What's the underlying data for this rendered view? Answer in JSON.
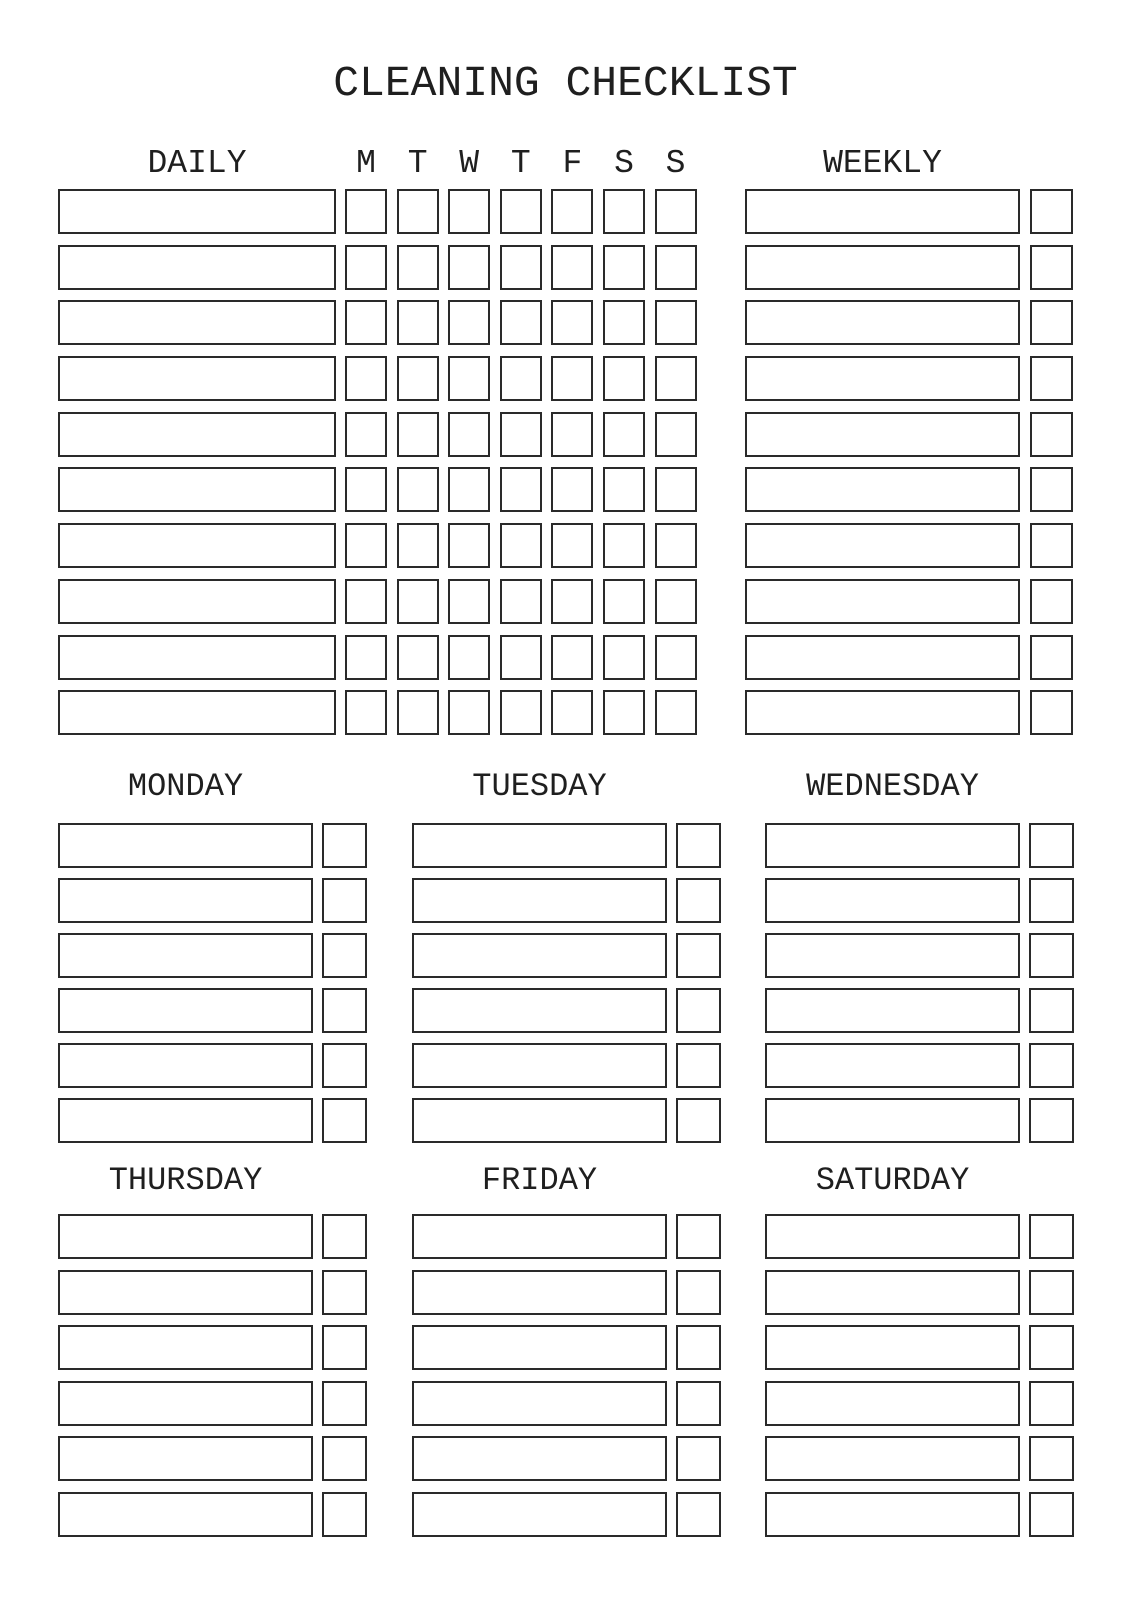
{
  "title": "CLEANING CHECKLIST",
  "colors": {
    "ink": "#1f1f1f",
    "box_border": "#2a2a2a",
    "background": "#ffffff"
  },
  "top_band": {
    "daily": {
      "label": "DAILY",
      "row_count": 10,
      "day_columns": [
        "M",
        "T",
        "W",
        "T",
        "F",
        "S",
        "S"
      ]
    },
    "weekly": {
      "label": "WEEKLY",
      "row_count": 10
    }
  },
  "day_sections": [
    {
      "label": "MONDAY",
      "row_count": 6
    },
    {
      "label": "TUESDAY",
      "row_count": 6
    },
    {
      "label": "WEDNESDAY",
      "row_count": 6
    },
    {
      "label": "THURSDAY",
      "row_count": 6
    },
    {
      "label": "FRIDAY",
      "row_count": 6
    },
    {
      "label": "SATURDAY",
      "row_count": 6
    }
  ]
}
